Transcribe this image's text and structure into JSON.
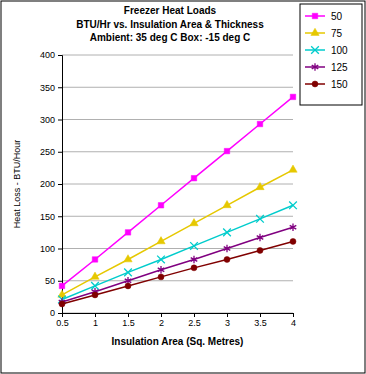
{
  "chart_data": {
    "type": "line",
    "title": "Freezer Heat Loads",
    "subtitle": [
      "BTU/Hr vs. Insulation Area & Thickness",
      "Ambient: 35 deg C  Box: -15 deg C"
    ],
    "x_label": "Insulation Area (Sq. Metres)",
    "y_label": "Heat Loss - BTU/Hour",
    "x": [
      0.5,
      1,
      1.5,
      2,
      2.5,
      3,
      3.5,
      4
    ],
    "xlim": [
      0.5,
      4
    ],
    "xticks": [
      0.5,
      1,
      1.5,
      2,
      2.5,
      3,
      3.5,
      4
    ],
    "ylim": [
      0,
      400
    ],
    "yticks": [
      0,
      50,
      100,
      150,
      200,
      250,
      300,
      350,
      400
    ],
    "grid": true,
    "legend": "top-right",
    "series": [
      {
        "name": "50",
        "color": "#FF00FF",
        "marker": "square",
        "values": [
          42,
          83,
          125,
          167,
          209,
          251,
          293,
          335
        ]
      },
      {
        "name": "75",
        "color": "#E6C800",
        "marker": "triangle",
        "values": [
          28,
          56,
          83,
          111,
          139,
          167,
          195,
          222
        ]
      },
      {
        "name": "100",
        "color": "#00CCCC",
        "marker": "x",
        "values": [
          21,
          42,
          63,
          83,
          104,
          125,
          146,
          167
        ]
      },
      {
        "name": "125",
        "color": "#800080",
        "marker": "star",
        "values": [
          17,
          33,
          50,
          67,
          83,
          100,
          117,
          133
        ]
      },
      {
        "name": "150",
        "color": "#800000",
        "marker": "circle",
        "values": [
          14,
          28,
          42,
          56,
          70,
          83,
          97,
          111
        ]
      }
    ]
  }
}
